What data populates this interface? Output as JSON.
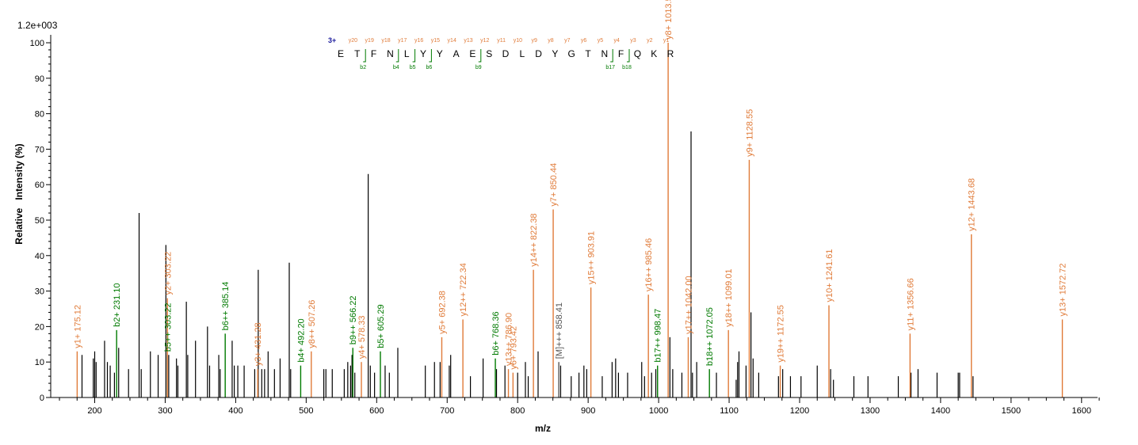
{
  "intensity_scale": "1.2e+003",
  "charge_label": "3+",
  "sequence": [
    "E",
    "T",
    "F",
    "N",
    "L",
    "Y",
    "Y",
    "A",
    "E",
    "S",
    "D",
    "L",
    "D",
    "Y",
    "G",
    "T",
    "N",
    "F",
    "Q",
    "K",
    "R"
  ],
  "y_ions_top": [
    "y20",
    "y19",
    "y18",
    "y17",
    "y16",
    "y15",
    "y14",
    "y13",
    "y12",
    "y11",
    "y10",
    "y9",
    "y8",
    "y7",
    "y6",
    "y5",
    "y4",
    "y3",
    "y2",
    "y1"
  ],
  "b_ions_bottom": [
    {
      "label": "b2",
      "after_index": 1
    },
    {
      "label": "b4",
      "after_index": 3
    },
    {
      "label": "b5",
      "after_index": 4
    },
    {
      "label": "b6",
      "after_index": 5
    },
    {
      "label": "b9",
      "after_index": 8
    },
    {
      "label": "b17",
      "after_index": 16
    },
    {
      "label": "b18",
      "after_index": 17
    }
  ],
  "colors": {
    "y_ion": "#e07b39",
    "b_ion": "#007a00",
    "other": "#000000",
    "precursor": "#555555",
    "charge": "#1a1a9c"
  },
  "chart_data": {
    "type": "bar",
    "xlabel": "m/z",
    "ylabel": "Relative   Intensity (%)",
    "xlim": [
      150,
      1625
    ],
    "ylim": [
      0,
      100
    ],
    "x_ticks": [
      200,
      300,
      400,
      500,
      600,
      700,
      800,
      900,
      1000,
      1100,
      1200,
      1300,
      1400,
      1500,
      1600
    ],
    "y_ticks": [
      0,
      10,
      20,
      30,
      40,
      50,
      60,
      70,
      80,
      90,
      100
    ],
    "annotated_peaks": [
      {
        "mz": 175.12,
        "intensity": 13,
        "label": "y1+ 175.12",
        "ion": "y"
      },
      {
        "mz": 231.1,
        "intensity": 19,
        "label": "b2+ 231.10",
        "ion": "b"
      },
      {
        "mz": 303.22,
        "intensity": 12,
        "label": "b5++ 303.22",
        "ion": "b"
      },
      {
        "mz": 303.22,
        "intensity": 28,
        "label": "y2+ 303.22",
        "ion": "y"
      },
      {
        "mz": 385.14,
        "intensity": 18,
        "label": "b6++ 385.14",
        "ion": "b"
      },
      {
        "mz": 431.28,
        "intensity": 8,
        "label": "y3+ 431.28",
        "ion": "y"
      },
      {
        "mz": 492.2,
        "intensity": 9,
        "label": "b4+ 492.20",
        "ion": "b"
      },
      {
        "mz": 507.26,
        "intensity": 13,
        "label": "y8++ 507.26",
        "ion": "y"
      },
      {
        "mz": 566.22,
        "intensity": 14,
        "label": "b9++ 566.22",
        "ion": "b"
      },
      {
        "mz": 578.33,
        "intensity": 10,
        "label": "y4+ 578.33",
        "ion": "y"
      },
      {
        "mz": 605.29,
        "intensity": 13,
        "label": "b5+ 605.29",
        "ion": "b"
      },
      {
        "mz": 692.38,
        "intensity": 17,
        "label": "y5+ 692.38",
        "ion": "y"
      },
      {
        "mz": 722.34,
        "intensity": 22,
        "label": "y12++ 722.34",
        "ion": "y"
      },
      {
        "mz": 768.36,
        "intensity": 11,
        "label": "b6+ 768.36",
        "ion": "b"
      },
      {
        "mz": 786.9,
        "intensity": 8,
        "label": "y13++ 786.90",
        "ion": "y"
      },
      {
        "mz": 793.42,
        "intensity": 7,
        "label": "y6+ 793.42",
        "ion": "y"
      },
      {
        "mz": 822.38,
        "intensity": 36,
        "label": "y14++ 822.38",
        "ion": "y"
      },
      {
        "mz": 850.44,
        "intensity": 53,
        "label": "y7+ 850.44",
        "ion": "y"
      },
      {
        "mz": 858.41,
        "intensity": 10,
        "label": "[M]+++ 858.41",
        "ion": "other"
      },
      {
        "mz": 903.91,
        "intensity": 31,
        "label": "y15++ 903.91",
        "ion": "y"
      },
      {
        "mz": 985.46,
        "intensity": 29,
        "label": "y16++ 985.46",
        "ion": "y"
      },
      {
        "mz": 998.47,
        "intensity": 9,
        "label": "b17++ 998.47",
        "ion": "b"
      },
      {
        "mz": 1013.5,
        "intensity": 100,
        "label": "y8+ 1013.50",
        "ion": "y"
      },
      {
        "mz": 1042.0,
        "intensity": 17,
        "label": "y17++ 1042.00",
        "ion": "y"
      },
      {
        "mz": 1072.05,
        "intensity": 8,
        "label": "b18++ 1072.05",
        "ion": "b"
      },
      {
        "mz": 1099.01,
        "intensity": 19,
        "label": "y18++ 1099.01",
        "ion": "y"
      },
      {
        "mz": 1128.55,
        "intensity": 67,
        "label": "y9+ 1128.55",
        "ion": "y"
      },
      {
        "mz": 1172.55,
        "intensity": 9,
        "label": "y19++ 1172.55",
        "ion": "y"
      },
      {
        "mz": 1241.61,
        "intensity": 26,
        "label": "y10+ 1241.61",
        "ion": "y"
      },
      {
        "mz": 1356.66,
        "intensity": 18,
        "label": "y11+ 1356.66",
        "ion": "y"
      },
      {
        "mz": 1443.68,
        "intensity": 46,
        "label": "y12+ 1443.68",
        "ion": "y"
      },
      {
        "mz": 1572.72,
        "intensity": 22,
        "label": "y13+ 1572.72",
        "ion": "y"
      }
    ],
    "unannotated_peaks": [
      [
        182,
        12
      ],
      [
        198,
        11
      ],
      [
        200,
        13
      ],
      [
        202,
        10
      ],
      [
        214,
        16
      ],
      [
        218,
        10
      ],
      [
        222,
        9
      ],
      [
        228,
        7
      ],
      [
        234,
        14
      ],
      [
        248,
        8
      ],
      [
        263,
        52
      ],
      [
        266,
        8
      ],
      [
        279,
        13
      ],
      [
        290,
        12
      ],
      [
        301,
        43
      ],
      [
        305,
        12
      ],
      [
        316,
        11
      ],
      [
        318,
        9
      ],
      [
        330,
        27
      ],
      [
        332,
        12
      ],
      [
        343,
        16
      ],
      [
        360,
        20
      ],
      [
        363,
        9
      ],
      [
        376,
        12
      ],
      [
        378,
        8
      ],
      [
        395,
        16
      ],
      [
        398,
        9
      ],
      [
        403,
        9
      ],
      [
        412,
        9
      ],
      [
        427,
        8
      ],
      [
        432,
        36
      ],
      [
        437,
        8
      ],
      [
        441,
        8
      ],
      [
        446,
        13
      ],
      [
        455,
        8
      ],
      [
        463,
        11
      ],
      [
        476,
        38
      ],
      [
        478,
        8
      ],
      [
        525,
        8
      ],
      [
        528,
        8
      ],
      [
        537,
        8
      ],
      [
        554,
        8
      ],
      [
        559,
        10
      ],
      [
        563,
        9
      ],
      [
        565,
        12
      ],
      [
        569,
        7
      ],
      [
        588,
        63
      ],
      [
        591,
        9
      ],
      [
        597,
        7
      ],
      [
        612,
        9
      ],
      [
        618,
        7
      ],
      [
        630,
        14
      ],
      [
        669,
        9
      ],
      [
        682,
        10
      ],
      [
        690,
        10
      ],
      [
        703,
        9
      ],
      [
        705,
        12
      ],
      [
        733,
        6
      ],
      [
        751,
        11
      ],
      [
        770,
        8
      ],
      [
        782,
        9
      ],
      [
        800,
        7
      ],
      [
        811,
        10
      ],
      [
        815,
        6
      ],
      [
        829,
        13
      ],
      [
        861,
        9
      ],
      [
        876,
        6
      ],
      [
        887,
        7
      ],
      [
        894,
        9
      ],
      [
        898,
        8
      ],
      [
        920,
        6
      ],
      [
        934,
        10
      ],
      [
        939,
        11
      ],
      [
        943,
        7
      ],
      [
        956,
        7
      ],
      [
        976,
        10
      ],
      [
        980,
        6
      ],
      [
        990,
        7
      ],
      [
        996,
        8
      ],
      [
        1016,
        17
      ],
      [
        1020,
        8
      ],
      [
        1033,
        7
      ],
      [
        1046,
        75
      ],
      [
        1048,
        7
      ],
      [
        1054,
        10
      ],
      [
        1082,
        7
      ],
      [
        1110,
        5
      ],
      [
        1112,
        10
      ],
      [
        1114,
        13
      ],
      [
        1124,
        9
      ],
      [
        1131,
        24
      ],
      [
        1134,
        11
      ],
      [
        1142,
        7
      ],
      [
        1170,
        6
      ],
      [
        1176,
        8
      ],
      [
        1187,
        6
      ],
      [
        1202,
        6
      ],
      [
        1225,
        9
      ],
      [
        1244,
        8
      ],
      [
        1248,
        5
      ],
      [
        1277,
        6
      ],
      [
        1297,
        6
      ],
      [
        1340,
        6
      ],
      [
        1358,
        7
      ],
      [
        1368,
        8
      ],
      [
        1395,
        7
      ],
      [
        1425,
        7
      ],
      [
        1427,
        7
      ],
      [
        1446,
        6
      ]
    ]
  }
}
